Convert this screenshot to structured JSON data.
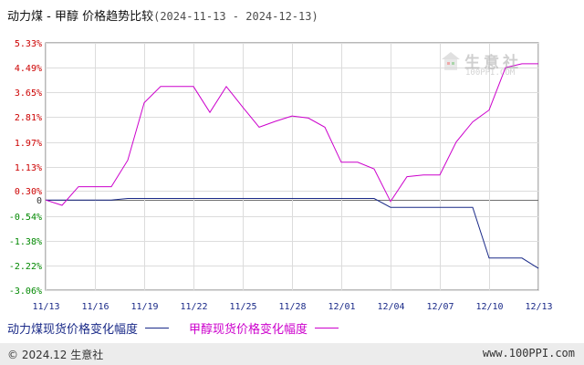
{
  "title": {
    "main": "动力煤 - 甲醇 价格趋势比较",
    "range": "(2024-11-13 - 2024-12-13)"
  },
  "chart_data": {
    "type": "line",
    "x": [
      "11/13",
      "11/14",
      "11/15",
      "11/16",
      "11/17",
      "11/18",
      "11/19",
      "11/20",
      "11/21",
      "11/22",
      "11/23",
      "11/24",
      "11/25",
      "11/26",
      "11/27",
      "11/28",
      "11/29",
      "11/30",
      "12/01",
      "12/02",
      "12/03",
      "12/04",
      "12/05",
      "12/06",
      "12/07",
      "12/08",
      "12/09",
      "12/10",
      "12/11",
      "12/12",
      "12/13"
    ],
    "x_tick_labels": [
      "11/13",
      "11/16",
      "11/19",
      "11/22",
      "11/25",
      "11/28",
      "12/01",
      "12/04",
      "12/07",
      "12/10",
      "12/13"
    ],
    "y_tick_labels": [
      "5.33%",
      "4.49%",
      "3.65%",
      "2.81%",
      "1.97%",
      "1.13%",
      "0.30%",
      "-0.54%",
      "-1.38%",
      "-2.22%",
      "-3.06%"
    ],
    "y_zero_label": "0",
    "ylim": [
      -3.06,
      5.33
    ],
    "grid": true,
    "legend_position": "bottom",
    "series": [
      {
        "name": "动力煤现货价格变化幅度",
        "color": "#1a2a88",
        "values": [
          0,
          0,
          0,
          0,
          0,
          0.05,
          0.05,
          0.05,
          0.05,
          0.05,
          0.05,
          0.05,
          0.05,
          0.05,
          0.05,
          0.05,
          0.05,
          0.05,
          0.05,
          0.05,
          0.05,
          -0.25,
          -0.25,
          -0.25,
          -0.25,
          -0.25,
          -0.25,
          -1.97,
          -1.97,
          -1.97,
          -2.32
        ]
      },
      {
        "name": "甲醇现货价格变化幅度",
        "color": "#cc00cc",
        "values": [
          0,
          -0.18,
          0.45,
          0.45,
          0.45,
          1.35,
          3.3,
          3.85,
          3.85,
          3.85,
          2.97,
          3.85,
          3.15,
          2.47,
          2.67,
          2.85,
          2.78,
          2.47,
          1.28,
          1.28,
          1.05,
          -0.05,
          0.79,
          0.85,
          0.85,
          1.97,
          2.65,
          3.05,
          4.49,
          4.62,
          4.62
        ]
      }
    ]
  },
  "watermark": {
    "text": "生意社",
    "url": "100PPI.COM"
  },
  "footer": {
    "copyright": "© 2024.12 生意社",
    "site": "www.100PPI.com"
  },
  "colors": {
    "grid": "#dcdcdc",
    "axis": "#707070",
    "ytick_positive": "#cc0000",
    "ytick_negative": "#008800",
    "footer_bg": "#ececec"
  }
}
